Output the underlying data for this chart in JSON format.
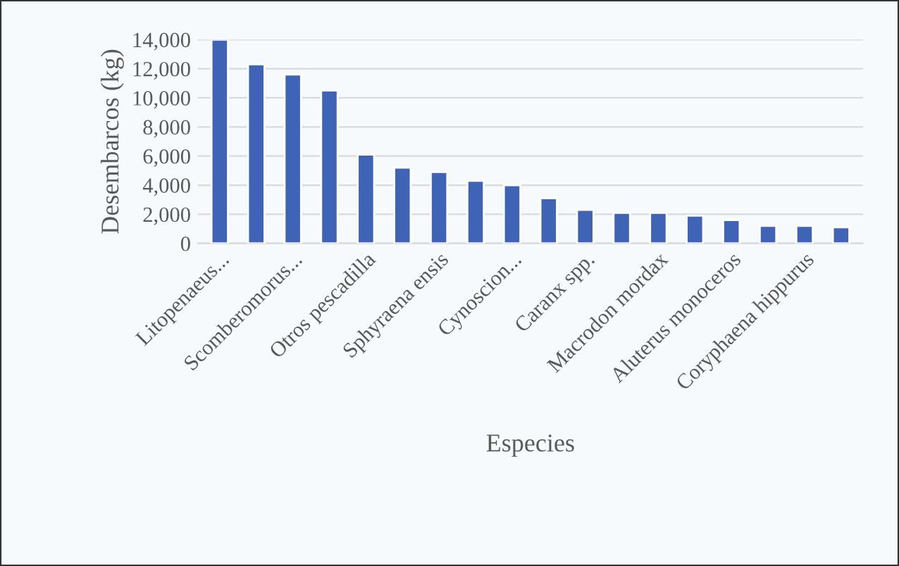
{
  "chart_data": {
    "type": "bar",
    "xlabel": "Especies",
    "ylabel": "Desembarcos (kg)",
    "categories": [
      "Litopenaeus...",
      null,
      "Scomberomorus...",
      null,
      "Otros pescadilla",
      null,
      "Sphyraena ensis",
      null,
      "Cynoscion...",
      null,
      "Caranx spp.",
      null,
      "Macrodon mordax",
      null,
      "Aluterus monoceros",
      null,
      "Coryphaena hippurus",
      null
    ],
    "values": [
      14000,
      12300,
      11600,
      10500,
      6100,
      5200,
      4900,
      4300,
      4000,
      3100,
      2300,
      2100,
      2100,
      1900,
      1600,
      1200,
      1200,
      1100
    ],
    "color": "#3f63b5",
    "ylim": [
      0,
      14000
    ],
    "yticks": [
      {
        "value": 0,
        "label": "0"
      },
      {
        "value": 2000,
        "label": "2,000"
      },
      {
        "value": 4000,
        "label": "4,000"
      },
      {
        "value": 6000,
        "label": "6,000"
      },
      {
        "value": 8000,
        "label": "8,000"
      },
      {
        "value": 10000,
        "label": "10,000"
      },
      {
        "value": 12000,
        "label": "12,000"
      },
      {
        "value": 14000,
        "label": "14,000"
      }
    ],
    "grid": "y"
  }
}
